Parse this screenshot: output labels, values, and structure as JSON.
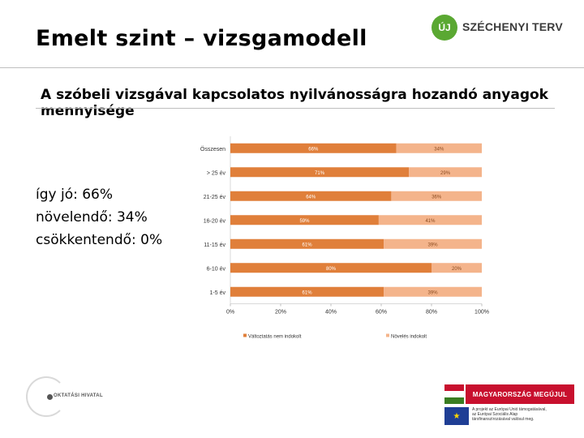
{
  "page": {
    "title": "Emelt szint – vizsgamodell",
    "subtitle": "A szóbeli vizsgával kapcsolatos nyilvánosságra hozandó anyagok mennyisége"
  },
  "summary": {
    "line1": "így jó: 66%",
    "line2": "növelendő: 34%",
    "line3": "csökkentendő: 0%"
  },
  "logos": {
    "szechenyi_mark": "ÚJ",
    "szechenyi_text": "SZÉCHENYI TERV",
    "office_text": "OKTATÁSI HIVATAL",
    "hungary_banner": "MAGYARORSZÁG MEGÚJUL",
    "eu_text_1": "A projekt az Európai Unió támogatásával,",
    "eu_text_2": "az Európai Szociális Alap",
    "eu_text_3": "társfinanszírozásával valósul meg."
  },
  "chart_data": {
    "type": "bar",
    "orientation": "horizontal",
    "stacked": true,
    "categories": [
      "Összesen",
      "> 25 év",
      "21-25 év",
      "16-20 év",
      "11-15 év",
      "6-10 év",
      "1-5 év"
    ],
    "series": [
      {
        "name": "Változtatás nem indokolt",
        "color": "#e07f3a",
        "values": [
          66,
          71,
          64,
          59,
          61,
          80,
          61
        ]
      },
      {
        "name": "Növelés indokolt",
        "color": "#f4b48b",
        "values": [
          34,
          29,
          36,
          41,
          39,
          20,
          39
        ]
      }
    ],
    "value_labels": [
      [
        "66%",
        "34%"
      ],
      [
        "71%",
        "29%"
      ],
      [
        "64%",
        "36%"
      ],
      [
        "59%",
        "41%"
      ],
      [
        "61%",
        "39%"
      ],
      [
        "80%",
        "20%"
      ],
      [
        "61%",
        "39%"
      ]
    ],
    "x_ticks": [
      "0%",
      "20%",
      "40%",
      "60%",
      "80%",
      "100%"
    ],
    "xlim": [
      0,
      100
    ],
    "legend": "bottom"
  }
}
